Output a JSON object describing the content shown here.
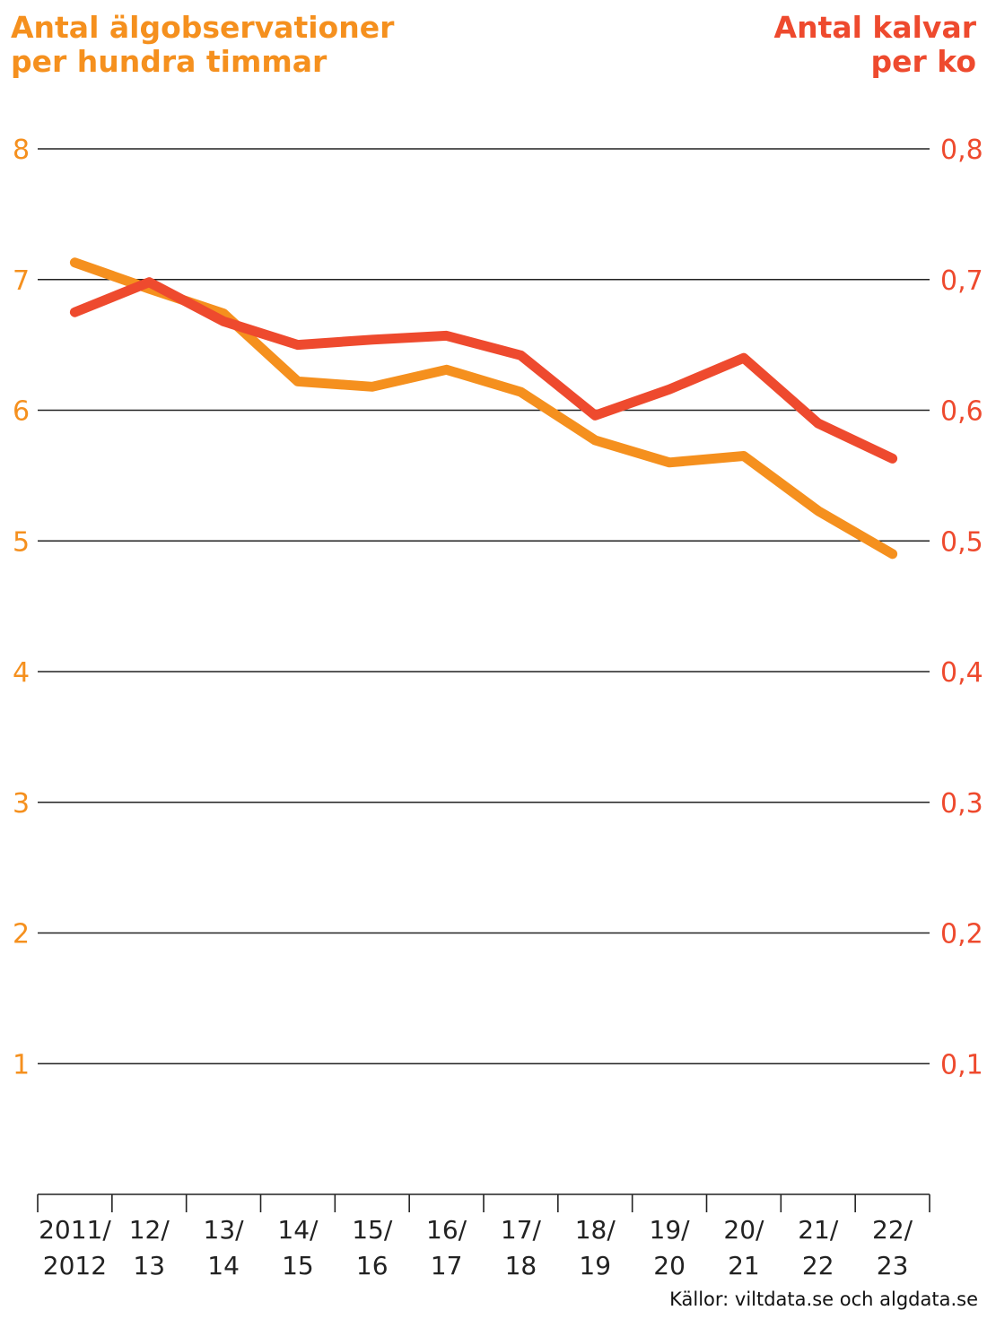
{
  "title_left": [
    "Antal älgobservationer",
    "per hundra timmar"
  ],
  "title_right": [
    "Antal kalvar",
    "per ko"
  ],
  "source": "Källor: viltdata.se och algdata.se",
  "colors": {
    "observations": "#f5901e",
    "calves": "#ee4a2e",
    "grid": "#222222"
  },
  "chart_data": {
    "type": "line",
    "categories": [
      [
        "2011/",
        "2012"
      ],
      [
        "12/",
        "13"
      ],
      [
        "13/",
        "14"
      ],
      [
        "14/",
        "15"
      ],
      [
        "15/",
        "16"
      ],
      [
        "16/",
        "17"
      ],
      [
        "17/",
        "18"
      ],
      [
        "18/",
        "19"
      ],
      [
        "19/",
        "20"
      ],
      [
        "20/",
        "21"
      ],
      [
        "21/",
        "22"
      ],
      [
        "22/",
        "23"
      ]
    ],
    "y_left": {
      "min": 0,
      "max": 8,
      "ticks": [
        1,
        2,
        3,
        4,
        5,
        6,
        7,
        8
      ],
      "tick_labels": [
        "1",
        "2",
        "3",
        "4",
        "5",
        "6",
        "7",
        "8"
      ]
    },
    "y_right": {
      "min": 0,
      "max": 0.8,
      "ticks": [
        0.1,
        0.2,
        0.3,
        0.4,
        0.5,
        0.6,
        0.7,
        0.8
      ],
      "tick_labels": [
        "0,1",
        "0,2",
        "0,3",
        "0,4",
        "0,5",
        "0,6",
        "0,7",
        "0,8"
      ]
    },
    "grid": true,
    "series": [
      {
        "key": "observations",
        "axis": "left",
        "values": [
          7.13,
          6.93,
          6.74,
          6.22,
          6.18,
          6.31,
          6.14,
          5.77,
          5.6,
          5.65,
          5.23,
          4.9
        ]
      },
      {
        "key": "calves",
        "axis": "right",
        "values": [
          0.675,
          0.698,
          0.668,
          0.65,
          0.654,
          0.657,
          0.642,
          0.596,
          0.616,
          0.64,
          0.59,
          0.563
        ]
      }
    ]
  }
}
